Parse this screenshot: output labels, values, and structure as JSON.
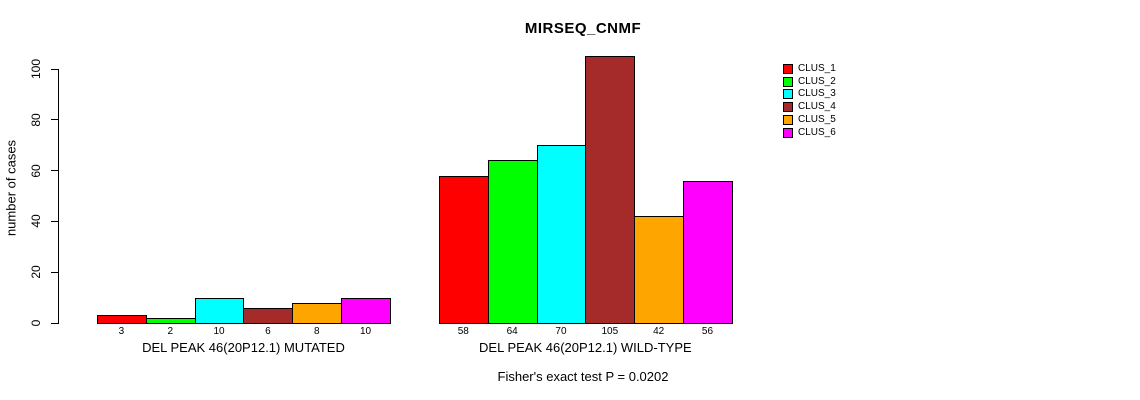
{
  "title": "MIRSEQ_CNMF",
  "chart_data": {
    "type": "bar",
    "title": "MIRSEQ_CNMF",
    "ylabel": "number of cases",
    "xlabel": "",
    "annotation": "Fisher's exact test P = 0.0202",
    "grid": false,
    "legend_position": "right",
    "y_ticks": [
      0,
      20,
      40,
      60,
      80,
      100
    ],
    "ylim": [
      0,
      105
    ],
    "series": [
      {
        "name": "CLUS_1",
        "color": "#ff0000"
      },
      {
        "name": "CLUS_2",
        "color": "#00ff00"
      },
      {
        "name": "CLUS_3",
        "color": "#00ffff"
      },
      {
        "name": "CLUS_4",
        "color": "#a52a2a"
      },
      {
        "name": "CLUS_5",
        "color": "#ffa500"
      },
      {
        "name": "CLUS_6",
        "color": "#ff00ff"
      }
    ],
    "groups": [
      {
        "label": "DEL PEAK 46(20P12.1) MUTATED",
        "values": [
          3,
          2,
          10,
          6,
          8,
          10
        ]
      },
      {
        "label": "DEL PEAK 46(20P12.1) WILD-TYPE",
        "values": [
          58,
          64,
          70,
          105,
          42,
          56
        ]
      }
    ]
  }
}
